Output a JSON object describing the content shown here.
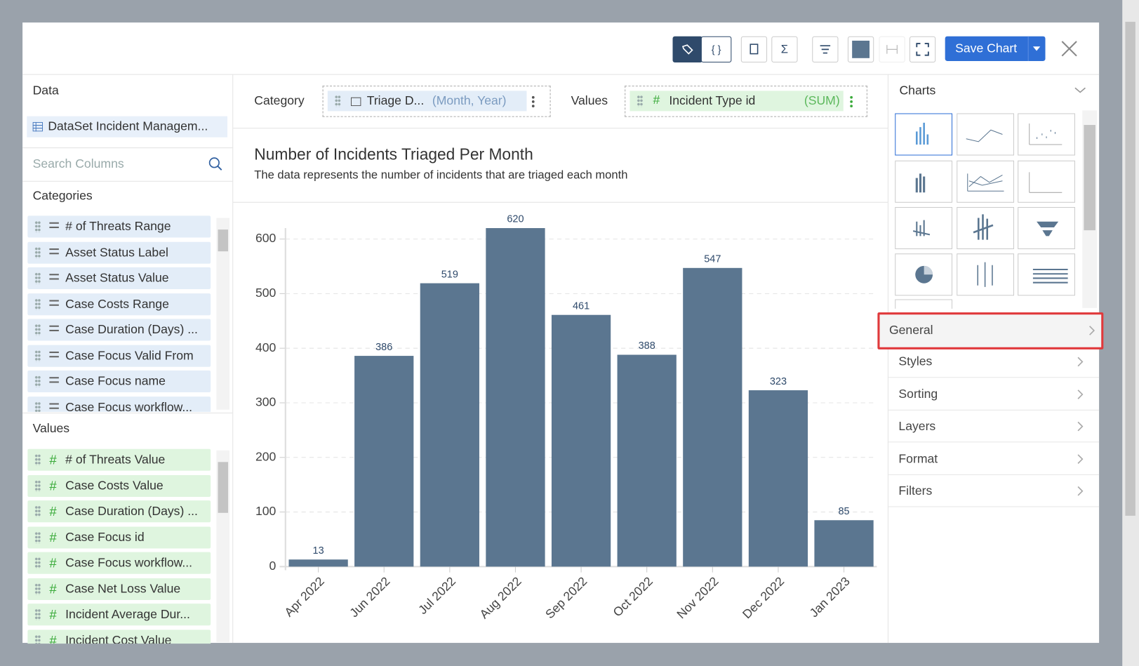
{
  "toolbar": {
    "save_button": "Save Chart"
  },
  "data_panel": {
    "title": "Data",
    "dataset": "DataSet Incident Managem...",
    "search_placeholder": "Search Columns",
    "categories_title": "Categories",
    "categories": [
      "# of Threats Range",
      "Asset Status Label",
      "Asset Status Value",
      "Case Costs Range",
      "Case Duration (Days) ...",
      "Case Focus Valid From",
      "Case Focus name",
      "Case Focus workflow..."
    ],
    "values_title": "Values",
    "values": [
      "# of Threats Value",
      "Case Costs Value",
      "Case Duration (Days) ...",
      "Case Focus id",
      "Case Focus workflow...",
      "Case Net Loss Value",
      "Incident Average Dur...",
      "Incident Cost Value"
    ]
  },
  "query_bar": {
    "category_label": "Category",
    "category_field": "Triage D...",
    "category_modifier": "(Month, Year)",
    "values_label": "Values",
    "values_field": "Incident Type id",
    "values_modifier": "(SUM)"
  },
  "chart_data": {
    "type": "bar",
    "title": "Number of Incidents Triaged Per Month",
    "subtitle": "The data represents the number of incidents that are triaged each month",
    "categories": [
      "Apr 2022",
      "Jun 2022",
      "Jul 2022",
      "Aug 2022",
      "Sep 2022",
      "Oct 2022",
      "Nov 2022",
      "Dec 2022",
      "Jan 2023"
    ],
    "values": [
      13,
      386,
      519,
      620,
      461,
      388,
      547,
      323,
      85
    ],
    "color": "#5b7690",
    "ylim": [
      0,
      620
    ],
    "yticks": [
      0,
      100,
      200,
      300,
      400,
      500,
      600
    ],
    "grid": true
  },
  "settings_panel": {
    "title": "Charts",
    "sections": [
      "General",
      "Styles",
      "Sorting",
      "Layers",
      "Format",
      "Filters"
    ]
  }
}
